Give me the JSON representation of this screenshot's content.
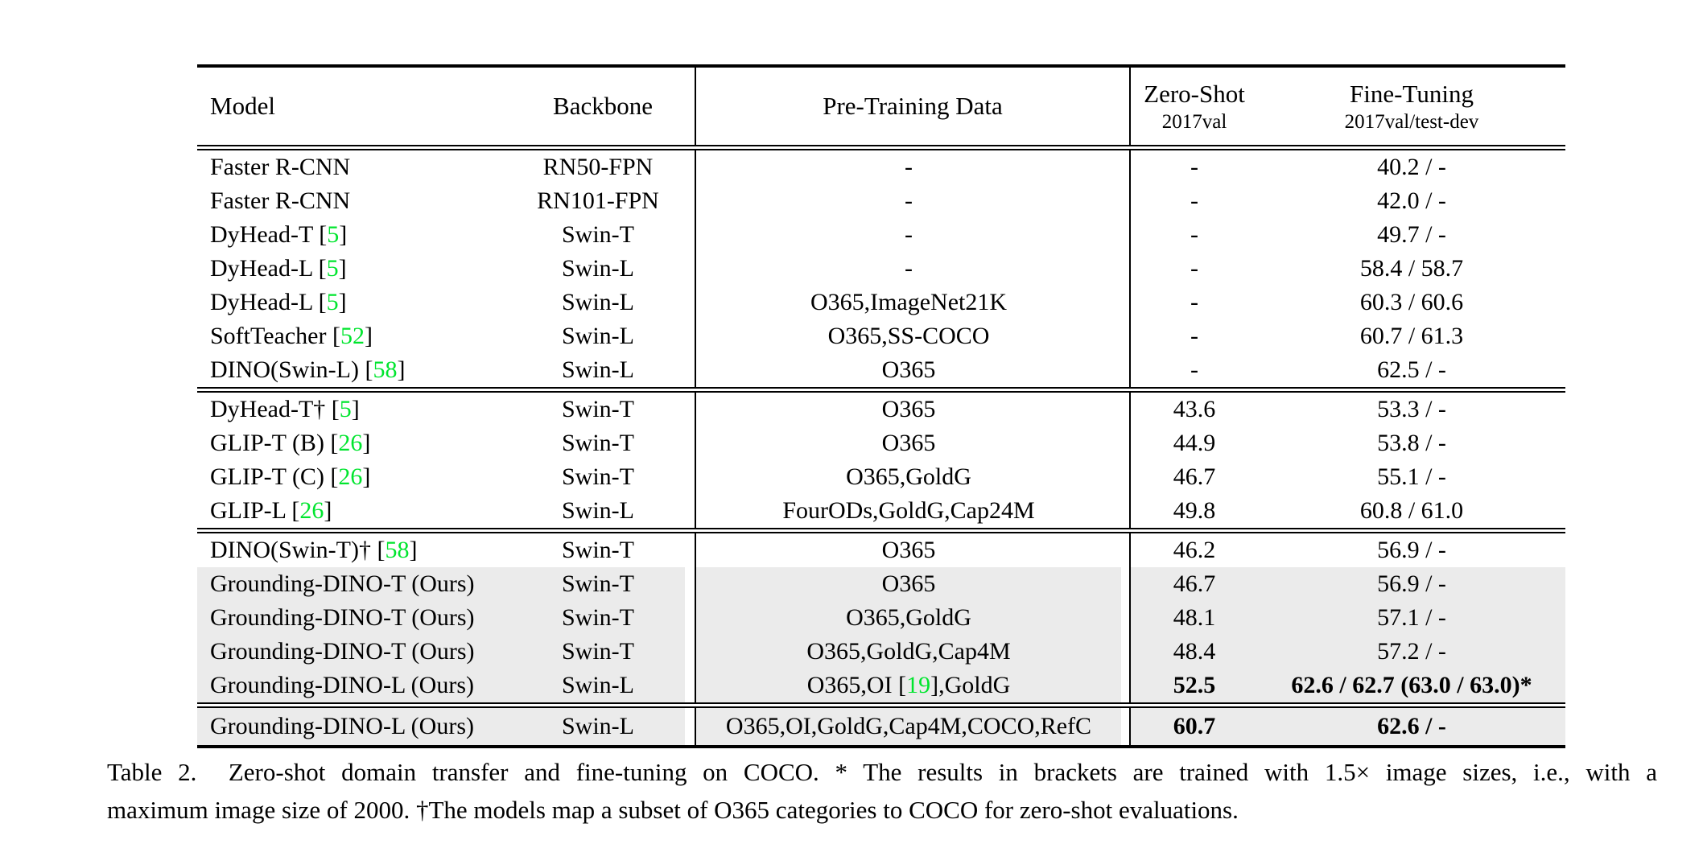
{
  "colors": {
    "citation_green": "#00E52E",
    "row_shade": "#EBEBEB",
    "rule_black": "#000000"
  },
  "header": {
    "model": "Model",
    "backbone": "Backbone",
    "pretrain": "Pre-Training Data",
    "zeroshot_title": "Zero-Shot",
    "zeroshot_sub": "2017val",
    "finetune_title": "Fine-Tuning",
    "finetune_sub": "2017val/test-dev"
  },
  "blocks": [
    {
      "rows": [
        {
          "model_pre": "Faster R-CNN",
          "model_cite": "",
          "model_post": "",
          "backbone": "RN50-FPN",
          "pre_pre": "-",
          "pre_cite": "",
          "pre_post": "",
          "zeroshot": "-",
          "finetune": "40.2 / -",
          "shaded": false,
          "bold": false
        },
        {
          "model_pre": "Faster R-CNN",
          "model_cite": "",
          "model_post": "",
          "backbone": "RN101-FPN",
          "pre_pre": "-",
          "pre_cite": "",
          "pre_post": "",
          "zeroshot": "-",
          "finetune": "42.0 / -",
          "shaded": false,
          "bold": false
        },
        {
          "model_pre": "DyHead-T [",
          "model_cite": "5",
          "model_post": "]",
          "backbone": "Swin-T",
          "pre_pre": "-",
          "pre_cite": "",
          "pre_post": "",
          "zeroshot": "-",
          "finetune": "49.7 / -",
          "shaded": false,
          "bold": false
        },
        {
          "model_pre": "DyHead-L [",
          "model_cite": "5",
          "model_post": "]",
          "backbone": "Swin-L",
          "pre_pre": "-",
          "pre_cite": "",
          "pre_post": "",
          "zeroshot": "-",
          "finetune": "58.4 / 58.7",
          "shaded": false,
          "bold": false
        },
        {
          "model_pre": "DyHead-L [",
          "model_cite": "5",
          "model_post": "]",
          "backbone": "Swin-L",
          "pre_pre": "O365,ImageNet21K",
          "pre_cite": "",
          "pre_post": "",
          "zeroshot": "-",
          "finetune": "60.3 / 60.6",
          "shaded": false,
          "bold": false
        },
        {
          "model_pre": "SoftTeacher [",
          "model_cite": "52",
          "model_post": "]",
          "backbone": "Swin-L",
          "pre_pre": "O365,SS-COCO",
          "pre_cite": "",
          "pre_post": "",
          "zeroshot": "-",
          "finetune": "60.7 / 61.3",
          "shaded": false,
          "bold": false
        },
        {
          "model_pre": "DINO(Swin-L) [",
          "model_cite": "58",
          "model_post": "]",
          "backbone": "Swin-L",
          "pre_pre": "O365",
          "pre_cite": "",
          "pre_post": "",
          "zeroshot": "-",
          "finetune": "62.5 / -",
          "shaded": false,
          "bold": false
        }
      ]
    },
    {
      "rows": [
        {
          "model_pre": "DyHead-T† [",
          "model_cite": "5",
          "model_post": "]",
          "backbone": "Swin-T",
          "pre_pre": "O365",
          "pre_cite": "",
          "pre_post": "",
          "zeroshot": "43.6",
          "finetune": "53.3 / -",
          "shaded": false,
          "bold": false
        },
        {
          "model_pre": "GLIP-T (B) [",
          "model_cite": "26",
          "model_post": "]",
          "backbone": "Swin-T",
          "pre_pre": "O365",
          "pre_cite": "",
          "pre_post": "",
          "zeroshot": "44.9",
          "finetune": "53.8 / -",
          "shaded": false,
          "bold": false
        },
        {
          "model_pre": "GLIP-T (C) [",
          "model_cite": "26",
          "model_post": "]",
          "backbone": "Swin-T",
          "pre_pre": "O365,GoldG",
          "pre_cite": "",
          "pre_post": "",
          "zeroshot": "46.7",
          "finetune": "55.1 / -",
          "shaded": false,
          "bold": false
        },
        {
          "model_pre": "GLIP-L [",
          "model_cite": "26",
          "model_post": "]",
          "backbone": "Swin-L",
          "pre_pre": "FourODs,GoldG,Cap24M",
          "pre_cite": "",
          "pre_post": "",
          "zeroshot": "49.8",
          "finetune": "60.8 / 61.0",
          "shaded": false,
          "bold": false
        }
      ]
    },
    {
      "rows": [
        {
          "model_pre": "DINO(Swin-T)† [",
          "model_cite": "58",
          "model_post": "]",
          "backbone": "Swin-T",
          "pre_pre": "O365",
          "pre_cite": "",
          "pre_post": "",
          "zeroshot": "46.2",
          "finetune": "56.9 / -",
          "shaded": false,
          "bold": false
        },
        {
          "model_pre": "Grounding-DINO-T (Ours)",
          "model_cite": "",
          "model_post": "",
          "backbone": "Swin-T",
          "pre_pre": "O365",
          "pre_cite": "",
          "pre_post": "",
          "zeroshot": "46.7",
          "finetune": "56.9 / -",
          "shaded": true,
          "bold": false
        },
        {
          "model_pre": "Grounding-DINO-T (Ours)",
          "model_cite": "",
          "model_post": "",
          "backbone": "Swin-T",
          "pre_pre": "O365,GoldG",
          "pre_cite": "",
          "pre_post": "",
          "zeroshot": "48.1",
          "finetune": "57.1 / -",
          "shaded": true,
          "bold": false
        },
        {
          "model_pre": "Grounding-DINO-T (Ours)",
          "model_cite": "",
          "model_post": "",
          "backbone": "Swin-T",
          "pre_pre": "O365,GoldG,Cap4M",
          "pre_cite": "",
          "pre_post": "",
          "zeroshot": "48.4",
          "finetune": "57.2 / -",
          "shaded": true,
          "bold": false
        },
        {
          "model_pre": "Grounding-DINO-L (Ours)",
          "model_cite": "",
          "model_post": "",
          "backbone": "Swin-L",
          "pre_pre": "O365,OI [",
          "pre_cite": "19",
          "pre_post": "],GoldG",
          "zeroshot": "52.5",
          "finetune": "62.6 / 62.7 (63.0 / 63.0)*",
          "shaded": true,
          "bold": true
        }
      ]
    },
    {
      "rows": [
        {
          "model_pre": "Grounding-DINO-L (Ours)",
          "model_cite": "",
          "model_post": "",
          "backbone": "Swin-L",
          "pre_pre": "O365,OI,GoldG,Cap4M,COCO,RefC",
          "pre_cite": "",
          "pre_post": "",
          "zeroshot": "60.7",
          "finetune": "62.6 / -",
          "shaded": true,
          "bold": true
        }
      ]
    }
  ],
  "caption": {
    "line1": "Table 2.  Zero-shot domain transfer and fine-tuning on COCO. * The results in brackets are trained with 1.5× image sizes, i.e., with a",
    "line2": "maximum image size of 2000. †The models map a subset of O365 categories to COCO for zero-shot evaluations."
  }
}
